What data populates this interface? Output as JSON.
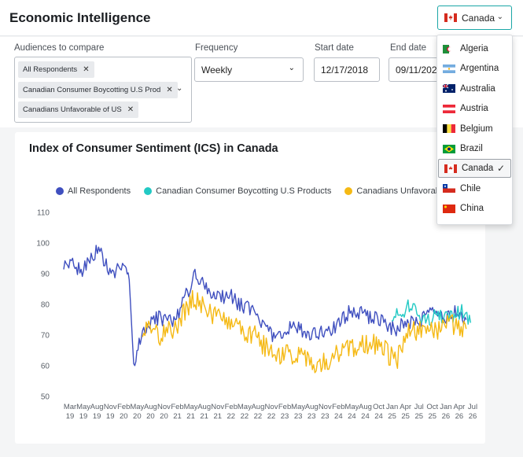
{
  "header": {
    "title": "Economic Intelligence",
    "country_selected": "Canada"
  },
  "filters": {
    "audiences_label": "Audiences to compare",
    "audience_chips": [
      "All Respondents",
      "Canadian Consumer Boycotting U.S Prod",
      "Canadians Unfavorable of US"
    ],
    "frequency_label": "Frequency",
    "frequency_value": "Weekly",
    "start_label": "Start date",
    "start_value": "12/17/2018",
    "end_label": "End date",
    "end_value": "09/11/2026"
  },
  "country_dropdown": {
    "options": [
      "Algeria",
      "Argentina",
      "Australia",
      "Austria",
      "Belgium",
      "Brazil",
      "Canada",
      "Chile",
      "China"
    ],
    "selected": "Canada"
  },
  "chart_data": {
    "type": "line",
    "title": "Index of Consumer Sentiment (ICS) in Canada",
    "ylim": [
      50,
      110
    ],
    "yticks": [
      50,
      60,
      70,
      80,
      90,
      100,
      110
    ],
    "x_tick_labels": [
      [
        "Mar",
        "19"
      ],
      [
        "May",
        "19"
      ],
      [
        "Aug",
        "19"
      ],
      [
        "Nov",
        "19"
      ],
      [
        "Feb",
        "20"
      ],
      [
        "May",
        "20"
      ],
      [
        "Aug",
        "20"
      ],
      [
        "Nov",
        "20"
      ],
      [
        "Feb",
        "21"
      ],
      [
        "May",
        "21"
      ],
      [
        "Aug",
        "21"
      ],
      [
        "Nov",
        "21"
      ],
      [
        "Feb",
        "22"
      ],
      [
        "May",
        "22"
      ],
      [
        "Aug",
        "22"
      ],
      [
        "Nov",
        "22"
      ],
      [
        "Feb",
        "23"
      ],
      [
        "May",
        "23"
      ],
      [
        "Aug",
        "23"
      ],
      [
        "Nov",
        "23"
      ],
      [
        "Feb",
        "24"
      ],
      [
        "May",
        "24"
      ],
      [
        "Aug",
        "24"
      ],
      [
        "Oct",
        "24"
      ],
      [
        "Jan",
        "25"
      ],
      [
        "Apr",
        "25"
      ],
      [
        "Jul",
        "25"
      ],
      [
        "Oct",
        "25"
      ],
      [
        "Jan",
        "26"
      ],
      [
        "Apr",
        "26"
      ],
      [
        "Jul",
        "26"
      ]
    ],
    "legend_position": "top",
    "series": [
      {
        "name": "All Respondents",
        "color": "#3f4fbf",
        "x": [
          "2018-12",
          "2019-02",
          "2019-04",
          "2019-06",
          "2019-08",
          "2019-10",
          "2019-12",
          "2020-02",
          "2020-03",
          "2020-04",
          "2020-05",
          "2020-06",
          "2020-08",
          "2020-10",
          "2020-12",
          "2021-02",
          "2021-04",
          "2021-06",
          "2021-08",
          "2021-10",
          "2021-12",
          "2022-02",
          "2022-04",
          "2022-06",
          "2022-08",
          "2022-10",
          "2022-12",
          "2023-02",
          "2023-04",
          "2023-06",
          "2023-08",
          "2023-10",
          "2023-12",
          "2024-02",
          "2024-04",
          "2024-06",
          "2024-08",
          "2024-10",
          "2024-12",
          "2025-02",
          "2025-04",
          "2025-06",
          "2025-08",
          "2025-10",
          "2025-12",
          "2026-02",
          "2026-04",
          "2026-06",
          "2026-08"
        ],
        "values": [
          93,
          93,
          91,
          94,
          98,
          92,
          91,
          92,
          88,
          60,
          66,
          71,
          74,
          76,
          74,
          76,
          83,
          90,
          86,
          84,
          82,
          83,
          80,
          79,
          76,
          72,
          70,
          69,
          73,
          72,
          69,
          71,
          70,
          73,
          76,
          78,
          77,
          76,
          75,
          73,
          72,
          74,
          74,
          75,
          77,
          76,
          76,
          78,
          75
        ]
      },
      {
        "name": "Canadian Consumer Boycotting U.S Products",
        "color": "#22c9c4",
        "x": [
          "2025-03",
          "2025-05",
          "2025-07",
          "2025-09",
          "2025-11",
          "2026-01",
          "2026-03",
          "2026-05",
          "2026-07",
          "2026-09"
        ],
        "values": [
          77,
          76,
          80,
          76,
          74,
          77,
          75,
          76,
          78,
          74
        ]
      },
      {
        "name": "Canadians Unfavorable of US",
        "color": "#f5b914",
        "x": [
          "2020-06",
          "2020-08",
          "2020-10",
          "2020-12",
          "2021-02",
          "2021-04",
          "2021-06",
          "2021-08",
          "2021-10",
          "2021-12",
          "2022-02",
          "2022-04",
          "2022-06",
          "2022-08",
          "2022-10",
          "2022-12",
          "2023-02",
          "2023-04",
          "2023-06",
          "2023-08",
          "2023-10",
          "2023-12",
          "2024-02",
          "2024-04",
          "2024-06",
          "2024-08",
          "2024-10",
          "2024-12",
          "2025-02",
          "2025-04",
          "2025-06",
          "2025-08",
          "2025-10",
          "2025-12",
          "2026-02",
          "2026-04",
          "2026-06",
          "2026-08"
        ],
        "values": [
          71,
          72,
          70,
          71,
          74,
          79,
          82,
          79,
          77,
          76,
          74,
          72,
          71,
          70,
          66,
          64,
          64,
          63,
          65,
          62,
          60,
          61,
          63,
          65,
          66,
          68,
          67,
          67,
          64,
          61,
          70,
          72,
          71,
          72,
          72,
          74,
          73,
          72
        ]
      }
    ]
  }
}
